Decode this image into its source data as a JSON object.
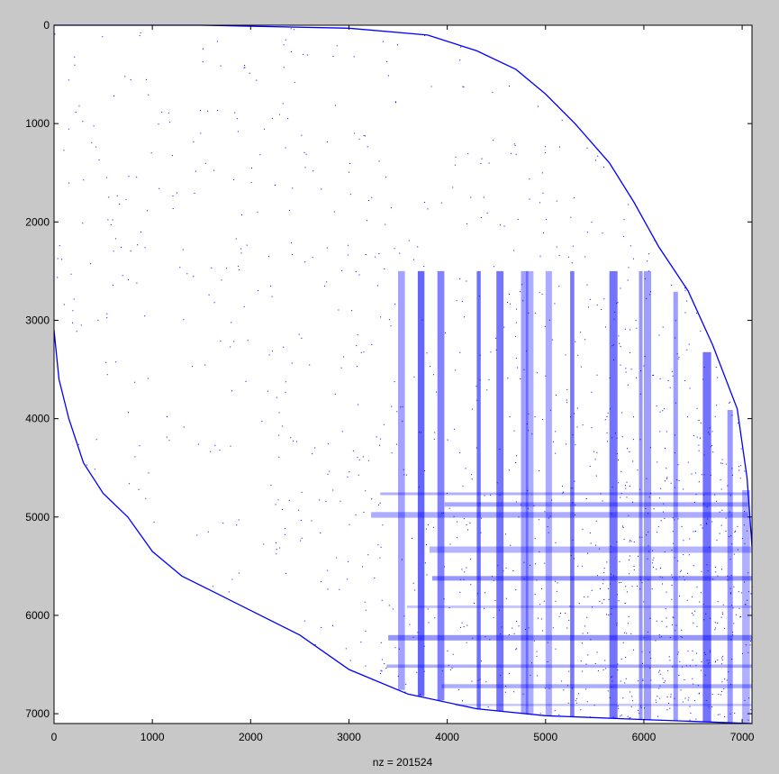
{
  "chart_data": {
    "type": "spy",
    "title": "",
    "xlabel": "nz = 201524",
    "ylabel": "",
    "matrix_size": [
      7100,
      7100
    ],
    "nnz": 201524,
    "marker_color": "#0000ff",
    "background": "#c8c8c8",
    "axes_background": "#ffffff",
    "xlim": [
      0,
      7100
    ],
    "ylim": [
      7100,
      0
    ],
    "y_reversed": true,
    "grid": false,
    "x_ticks": [
      0,
      1000,
      2000,
      3000,
      4000,
      5000,
      6000,
      7000
    ],
    "y_ticks": [
      0,
      1000,
      2000,
      3000,
      4000,
      5000,
      6000,
      7000
    ],
    "x_tick_labels": [
      "0",
      "1000",
      "2000",
      "3000",
      "4000",
      "5000",
      "6000",
      "7000"
    ],
    "y_tick_labels": [
      "0",
      "1000",
      "2000",
      "3000",
      "4000",
      "5000",
      "6000",
      "7000"
    ],
    "upper_boundary": [
      [
        0,
        0
      ],
      [
        1500,
        0
      ],
      [
        3000,
        30
      ],
      [
        3800,
        100
      ],
      [
        4300,
        260
      ],
      [
        4700,
        450
      ],
      [
        5000,
        700
      ],
      [
        5300,
        1000
      ],
      [
        5650,
        1400
      ],
      [
        5900,
        1800
      ],
      [
        6150,
        2250
      ],
      [
        6450,
        2700
      ],
      [
        6700,
        3250
      ],
      [
        6950,
        3900
      ],
      [
        7050,
        4600
      ],
      [
        7100,
        5300
      ]
    ],
    "lower_boundary": [
      [
        0,
        3100
      ],
      [
        50,
        3600
      ],
      [
        150,
        4000
      ],
      [
        300,
        4450
      ],
      [
        500,
        4760
      ],
      [
        750,
        5000
      ],
      [
        1000,
        5350
      ],
      [
        1300,
        5600
      ],
      [
        1700,
        5800
      ],
      [
        2100,
        6000
      ],
      [
        2500,
        6200
      ],
      [
        3000,
        6550
      ],
      [
        3600,
        6800
      ],
      [
        4300,
        6950
      ],
      [
        5000,
        7020
      ],
      [
        6000,
        7060
      ],
      [
        7100,
        7100
      ]
    ]
  }
}
